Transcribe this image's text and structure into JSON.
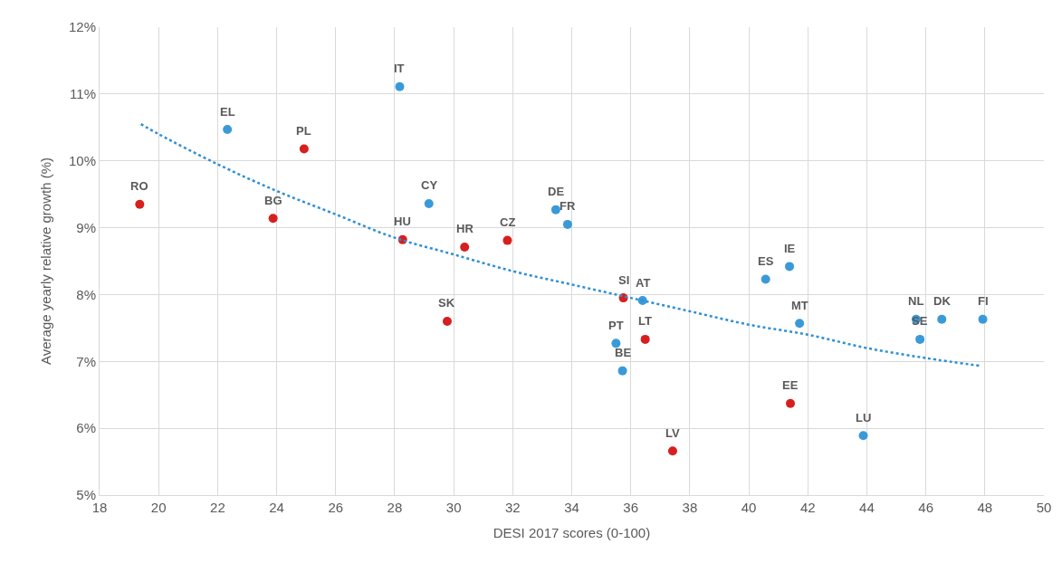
{
  "chart_data": {
    "type": "scatter",
    "xlabel": "DESI 2017 scores (0-100)",
    "ylabel": "Average yearly relative growth (%)",
    "xlim": [
      18,
      50
    ],
    "xticks": [
      18,
      20,
      22,
      24,
      26,
      28,
      30,
      32,
      34,
      36,
      38,
      40,
      42,
      44,
      46,
      48,
      50
    ],
    "ylim": [
      5,
      12
    ],
    "yticks": [
      {
        "value": 5,
        "label": "5%"
      },
      {
        "value": 6,
        "label": "6%"
      },
      {
        "value": 7,
        "label": "7%"
      },
      {
        "value": 8,
        "label": "8%"
      },
      {
        "value": 9,
        "label": "9%"
      },
      {
        "value": 10,
        "label": "10%"
      },
      {
        "value": 11,
        "label": "11%"
      },
      {
        "value": 12,
        "label": "12%"
      }
    ],
    "grid": true,
    "marker": "circle",
    "series": [
      {
        "color": "#3a9ad9",
        "x": [
          22.33,
          28.17,
          29.16,
          33.46,
          33.86,
          36.4,
          35.5,
          35.72,
          40.57,
          41.38,
          41.72,
          43.88,
          45.67,
          45.8,
          46.54,
          47.93
        ],
        "values": [
          10.47,
          11.11,
          9.36,
          9.27,
          9.05,
          7.91,
          7.27,
          6.86,
          8.23,
          8.42,
          7.57,
          5.89,
          7.63,
          7.33,
          7.63,
          7.63
        ]
      },
      {
        "color": "#d71f1f",
        "x": [
          19.36,
          24.93,
          23.88,
          28.27,
          30.37,
          31.82,
          29.78,
          35.75,
          36.49,
          37.42,
          41.41
        ],
        "values": [
          9.35,
          10.18,
          9.14,
          8.82,
          8.71,
          8.81,
          7.6,
          7.95,
          7.33,
          5.66,
          6.37
        ]
      },
      {
        "type": "line",
        "color": "#2e8fd6",
        "line_style": "dotted",
        "marker": "none",
        "x": [
          19.4,
          20,
          22,
          24,
          26,
          28,
          30,
          32,
          34,
          36,
          38,
          40,
          42,
          44,
          46,
          47.9
        ],
        "values": [
          10.55,
          10.4,
          9.95,
          9.55,
          9.2,
          8.85,
          8.6,
          8.35,
          8.15,
          7.95,
          7.75,
          7.55,
          7.4,
          7.2,
          7.05,
          6.93
        ]
      }
    ],
    "annotations": [
      {
        "text": "EL",
        "x": 22.33,
        "y": 10.47
      },
      {
        "text": "IT",
        "x": 28.17,
        "y": 11.11
      },
      {
        "text": "CY",
        "x": 29.16,
        "y": 9.36
      },
      {
        "text": "DE",
        "x": 33.46,
        "y": 9.27
      },
      {
        "text": "FR",
        "x": 33.86,
        "y": 9.05
      },
      {
        "text": "AT",
        "x": 36.4,
        "y": 7.91
      },
      {
        "text": "PT",
        "x": 35.5,
        "y": 7.27
      },
      {
        "text": "BE",
        "x": 35.72,
        "y": 6.86
      },
      {
        "text": "ES",
        "x": 40.57,
        "y": 8.23
      },
      {
        "text": "IE",
        "x": 41.38,
        "y": 8.42
      },
      {
        "text": "MT",
        "x": 41.72,
        "y": 7.57
      },
      {
        "text": "LU",
        "x": 43.88,
        "y": 5.89
      },
      {
        "text": "NL",
        "x": 45.67,
        "y": 7.63
      },
      {
        "text": "SE",
        "x": 45.8,
        "y": 7.33
      },
      {
        "text": "DK",
        "x": 46.54,
        "y": 7.63
      },
      {
        "text": "FI",
        "x": 47.93,
        "y": 7.63
      },
      {
        "text": "RO",
        "x": 19.36,
        "y": 9.35
      },
      {
        "text": "PL",
        "x": 24.93,
        "y": 10.18
      },
      {
        "text": "BG",
        "x": 23.88,
        "y": 9.14
      },
      {
        "text": "HU",
        "x": 28.27,
        "y": 8.82
      },
      {
        "text": "HR",
        "x": 30.37,
        "y": 8.71
      },
      {
        "text": "CZ",
        "x": 31.82,
        "y": 8.81
      },
      {
        "text": "SK",
        "x": 29.78,
        "y": 7.6
      },
      {
        "text": "SI",
        "x": 35.75,
        "y": 7.95
      },
      {
        "text": "LT",
        "x": 36.49,
        "y": 7.33
      },
      {
        "text": "LV",
        "x": 37.42,
        "y": 5.66
      },
      {
        "text": "EE",
        "x": 41.41,
        "y": 6.37
      }
    ]
  }
}
